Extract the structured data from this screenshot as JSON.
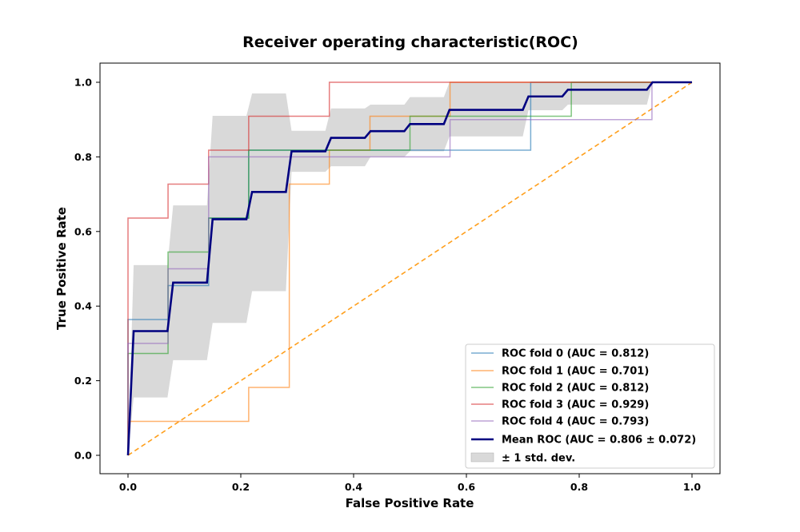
{
  "chart_data": {
    "type": "line",
    "title": "Receiver operating characteristic(ROC)",
    "xlabel": "False Positive Rate",
    "ylabel": "True Positive Rate",
    "xlim": [
      -0.05,
      1.05
    ],
    "ylim": [
      -0.05,
      1.05
    ],
    "xticks": [
      0.0,
      0.2,
      0.4,
      0.6,
      0.8,
      1.0
    ],
    "yticks": [
      0.0,
      0.2,
      0.4,
      0.6,
      0.8,
      1.0
    ],
    "xtick_labels": [
      "0.0",
      "0.2",
      "0.4",
      "0.6",
      "0.8",
      "1.0"
    ],
    "ytick_labels": [
      "0.0",
      "0.2",
      "0.4",
      "0.6",
      "0.8",
      "1.0"
    ],
    "legend_position": "lower-right",
    "series": [
      {
        "name": "ROC fold 0 (AUC = 0.812)",
        "color": "#1f77b4",
        "x": [
          0,
          0,
          0.071,
          0.071,
          0.143,
          0.143,
          0.214,
          0.214,
          0.286,
          0.286,
          0.571,
          0.571,
          0.714,
          0.714,
          1.0
        ],
        "y": [
          0,
          0.364,
          0.364,
          0.455,
          0.455,
          0.636,
          0.636,
          0.818,
          0.818,
          0.818,
          0.818,
          0.818,
          0.818,
          1.0,
          1.0
        ]
      },
      {
        "name": "ROC fold 1 (AUC = 0.701)",
        "color": "#ff7f0e",
        "x": [
          0,
          0,
          0.214,
          0.214,
          0.286,
          0.286,
          0.357,
          0.357,
          0.429,
          0.429,
          0.571,
          0.571,
          1.0
        ],
        "y": [
          0,
          0.091,
          0.091,
          0.182,
          0.182,
          0.727,
          0.727,
          0.818,
          0.818,
          0.909,
          0.909,
          1.0,
          1.0
        ]
      },
      {
        "name": "ROC fold 2 (AUC = 0.812)",
        "color": "#2ca02c",
        "x": [
          0,
          0,
          0.071,
          0.071,
          0.143,
          0.143,
          0.214,
          0.214,
          0.5,
          0.5,
          0.786,
          0.786,
          1.0
        ],
        "y": [
          0,
          0.273,
          0.273,
          0.545,
          0.545,
          0.636,
          0.636,
          0.818,
          0.818,
          0.909,
          0.909,
          1.0,
          1.0
        ]
      },
      {
        "name": "ROC fold 3 (AUC = 0.929)",
        "color": "#d62728",
        "x": [
          0,
          0,
          0.071,
          0.071,
          0.143,
          0.143,
          0.214,
          0.214,
          0.357,
          0.357,
          1.0
        ],
        "y": [
          0,
          0.636,
          0.636,
          0.727,
          0.727,
          0.818,
          0.818,
          0.909,
          0.909,
          1.0,
          1.0
        ]
      },
      {
        "name": "ROC fold 4 (AUC = 0.793)",
        "color": "#9467bd",
        "x": [
          0,
          0,
          0.071,
          0.071,
          0.143,
          0.143,
          0.571,
          0.571,
          0.929,
          0.929,
          1.0
        ],
        "y": [
          0,
          0.3,
          0.3,
          0.5,
          0.5,
          0.8,
          0.8,
          0.9,
          0.9,
          1.0,
          1.0
        ]
      },
      {
        "name": "Mean ROC (AUC = 0.806 ± 0.072)",
        "color": "#000080",
        "x": [
          0,
          0.01,
          0.07,
          0.08,
          0.14,
          0.15,
          0.21,
          0.22,
          0.28,
          0.29,
          0.35,
          0.36,
          0.42,
          0.43,
          0.49,
          0.5,
          0.56,
          0.57,
          0.7,
          0.71,
          0.77,
          0.78,
          0.92,
          0.93,
          1.0
        ],
        "y": [
          0,
          0.333,
          0.333,
          0.463,
          0.463,
          0.633,
          0.633,
          0.706,
          0.706,
          0.815,
          0.815,
          0.851,
          0.851,
          0.869,
          0.869,
          0.888,
          0.888,
          0.926,
          0.926,
          0.962,
          0.962,
          0.98,
          0.98,
          1.0,
          1.0
        ]
      }
    ],
    "std_band": {
      "name": "± 1 std. dev.",
      "color": "#bfbfbf",
      "x": [
        0,
        0.01,
        0.07,
        0.08,
        0.14,
        0.15,
        0.21,
        0.22,
        0.28,
        0.29,
        0.35,
        0.36,
        0.42,
        0.43,
        0.49,
        0.5,
        0.56,
        0.57,
        0.7,
        0.71,
        0.77,
        0.78,
        0.92,
        0.93,
        1.0
      ],
      "upper": [
        0,
        0.51,
        0.51,
        0.67,
        0.67,
        0.91,
        0.91,
        0.97,
        0.97,
        0.87,
        0.87,
        0.93,
        0.93,
        0.94,
        0.94,
        0.96,
        0.96,
        1.0,
        1.0,
        1.0,
        1.0,
        1.0,
        1.0,
        1.0,
        1.0
      ],
      "lower": [
        0,
        0.155,
        0.155,
        0.255,
        0.255,
        0.355,
        0.355,
        0.44,
        0.44,
        0.76,
        0.76,
        0.775,
        0.775,
        0.8,
        0.8,
        0.815,
        0.815,
        0.855,
        0.855,
        0.925,
        0.925,
        0.94,
        0.94,
        1.0,
        1.0
      ]
    },
    "chance_line": {
      "color": "#ff9f1c",
      "x": [
        0,
        1
      ],
      "y": [
        0,
        1
      ]
    }
  }
}
